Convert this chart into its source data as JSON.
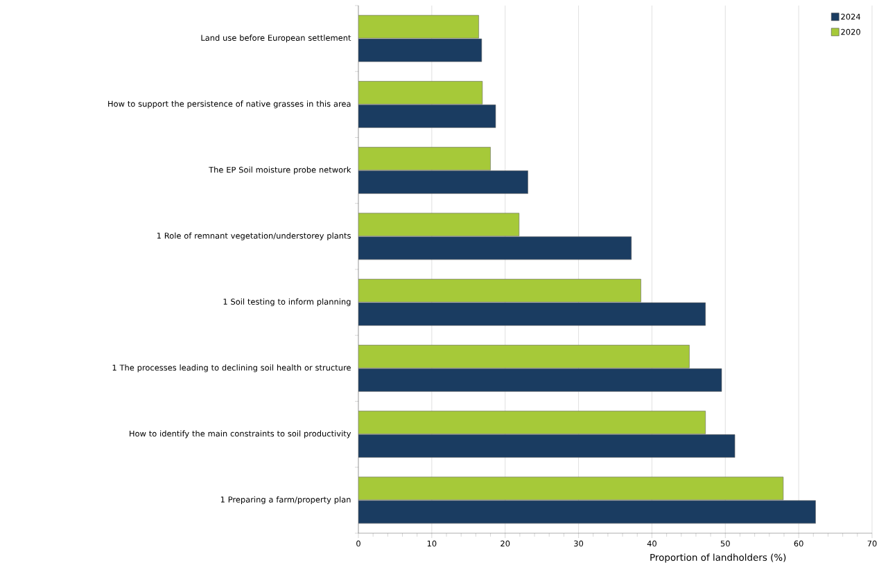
{
  "chart_data": {
    "type": "bar",
    "orientation": "horizontal",
    "xlabel": "Proportion of landholders (%)",
    "categories": [
      "Land use before European settlement",
      "How to support the persistence of native grasses in this area",
      "The EP Soil moisture probe network",
      "1 Role of remnant vegetation/understorey plants",
      "1 Soil testing to inform planning",
      "1 The processes leading to declining soil health or structure",
      "How to identify the main constraints to soil productivity",
      "1 Preparing a farm/property plan"
    ],
    "series": [
      {
        "name": "2024",
        "color": "#1a3c61",
        "values": [
          16.8,
          18.7,
          23.1,
          37.2,
          47.3,
          49.5,
          51.3,
          62.3
        ]
      },
      {
        "name": "2020",
        "color": "#a6c939",
        "values": [
          16.4,
          16.9,
          18.0,
          21.9,
          38.5,
          45.1,
          47.3,
          57.9
        ]
      }
    ],
    "xlim": [
      0,
      70
    ],
    "xticks": [
      0,
      10,
      20,
      30,
      40,
      50,
      60,
      70
    ],
    "grid": "x",
    "legend": "top right"
  }
}
